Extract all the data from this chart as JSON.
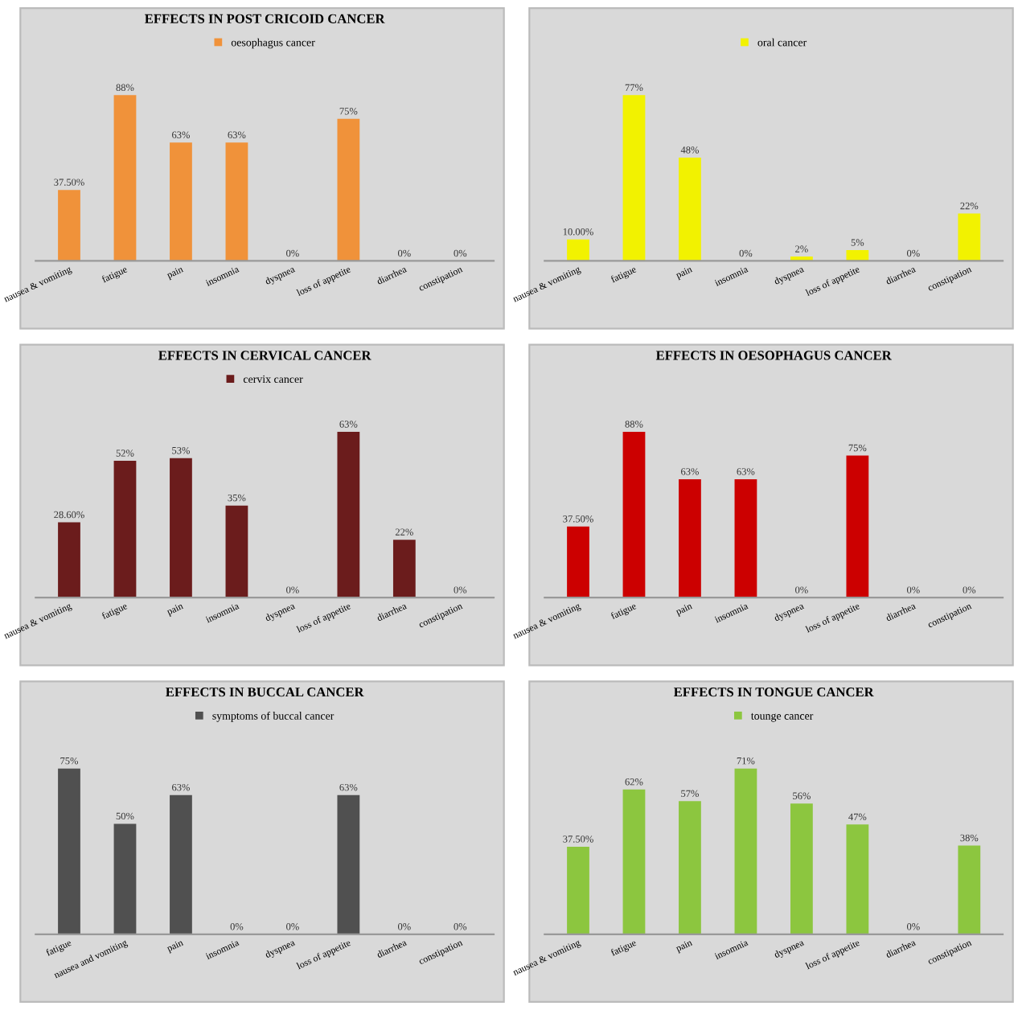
{
  "chart_data": [
    {
      "type": "bar",
      "title": "EFFECTS IN POST CRICOID CANCER",
      "categories": [
        "nausea & vomiting",
        "fatigue",
        "pain",
        "insomnia",
        "dyspnea",
        "loss of appetite",
        "diarrhea",
        "constipation"
      ],
      "legend": "top",
      "data_labels": true,
      "series": [
        {
          "name": "oesophagus cancer",
          "color": "#f0923a",
          "values": [
            37.5,
            87.5,
            62.5,
            62.5,
            0,
            75,
            0,
            0
          ],
          "value_labels": [
            "37.50%",
            "88%",
            "63%",
            "63%",
            "0%",
            "75%",
            "0%",
            "0%"
          ]
        }
      ]
    },
    {
      "type": "bar",
      "categories": [
        "nausea & vomiting",
        "fatigue",
        "pain",
        "insomnia",
        "dyspnea",
        "loss of appetite",
        "diarrhea",
        "constipation"
      ],
      "legend": "top",
      "data_labels": true,
      "series": [
        {
          "name": "oral cancer",
          "color": "#f2f200",
          "values": [
            10,
            77,
            48,
            0,
            2,
            5,
            0,
            22
          ],
          "value_labels": [
            "10.00%",
            "77%",
            "48%",
            "0%",
            "2%",
            "5%",
            "0%",
            "22%"
          ]
        }
      ]
    },
    {
      "type": "bar",
      "title": "EFFECTS IN CERVICAL CANCER",
      "categories": [
        "nausea & vomiting",
        "fatigue",
        "pain",
        "insomnia",
        "dyspnea",
        "loss of appetite",
        "diarrhea",
        "constipation"
      ],
      "legend": "top",
      "data_labels": true,
      "series": [
        {
          "name": "cervix cancer",
          "color": "#6b1c1c",
          "values": [
            28.6,
            52,
            53,
            35,
            0,
            63,
            22,
            0
          ],
          "value_labels": [
            "28.60%",
            "52%",
            "53%",
            "35%",
            "0%",
            "63%",
            "22%",
            "0%"
          ]
        }
      ]
    },
    {
      "type": "bar",
      "title": "EFFECTS IN OESOPHAGUS CANCER",
      "categories": [
        "nausea & vomiting",
        "fatigue",
        "pain",
        "insomnia",
        "dyspnea",
        "loss of appetite",
        "diarrhea",
        "constipation"
      ],
      "data_labels": true,
      "series": [
        {
          "color": "#cc0000",
          "values": [
            37.5,
            87.5,
            62.5,
            62.5,
            0,
            75,
            0,
            0
          ],
          "value_labels": [
            "37.50%",
            "88%",
            "63%",
            "63%",
            "0%",
            "75%",
            "0%",
            "0%"
          ]
        }
      ]
    },
    {
      "type": "bar",
      "title": "EFFECTS IN BUCCAL CANCER",
      "categories": [
        "fatigue",
        "nausea and vomiting",
        "pain",
        "insomnia",
        "dyspnea",
        "loss of appetite",
        "diarrhea",
        "constipation"
      ],
      "legend": "top",
      "data_labels": true,
      "series": [
        {
          "name": "symptoms of buccal cancer",
          "color": "#505050",
          "values": [
            75,
            50,
            63,
            0,
            0,
            63,
            0,
            0
          ],
          "value_labels": [
            "75%",
            "50%",
            "63%",
            "0%",
            "0%",
            "63%",
            "0%",
            "0%"
          ]
        }
      ]
    },
    {
      "type": "bar",
      "title": "EFFECTS IN TONGUE CANCER",
      "categories": [
        "nausea & vomiting",
        "fatigue",
        "pain",
        "insomnia",
        "dyspnea",
        "loss of appetite",
        "diarrhea",
        "constipation"
      ],
      "legend": "top",
      "data_labels": true,
      "series": [
        {
          "name": "tounge cancer",
          "color": "#8cc63f",
          "values": [
            37.5,
            62,
            57,
            71,
            56,
            47,
            0,
            38
          ],
          "value_labels": [
            "37.50%",
            "62%",
            "57%",
            "71%",
            "56%",
            "47%",
            "0%",
            "38%"
          ]
        }
      ]
    }
  ]
}
